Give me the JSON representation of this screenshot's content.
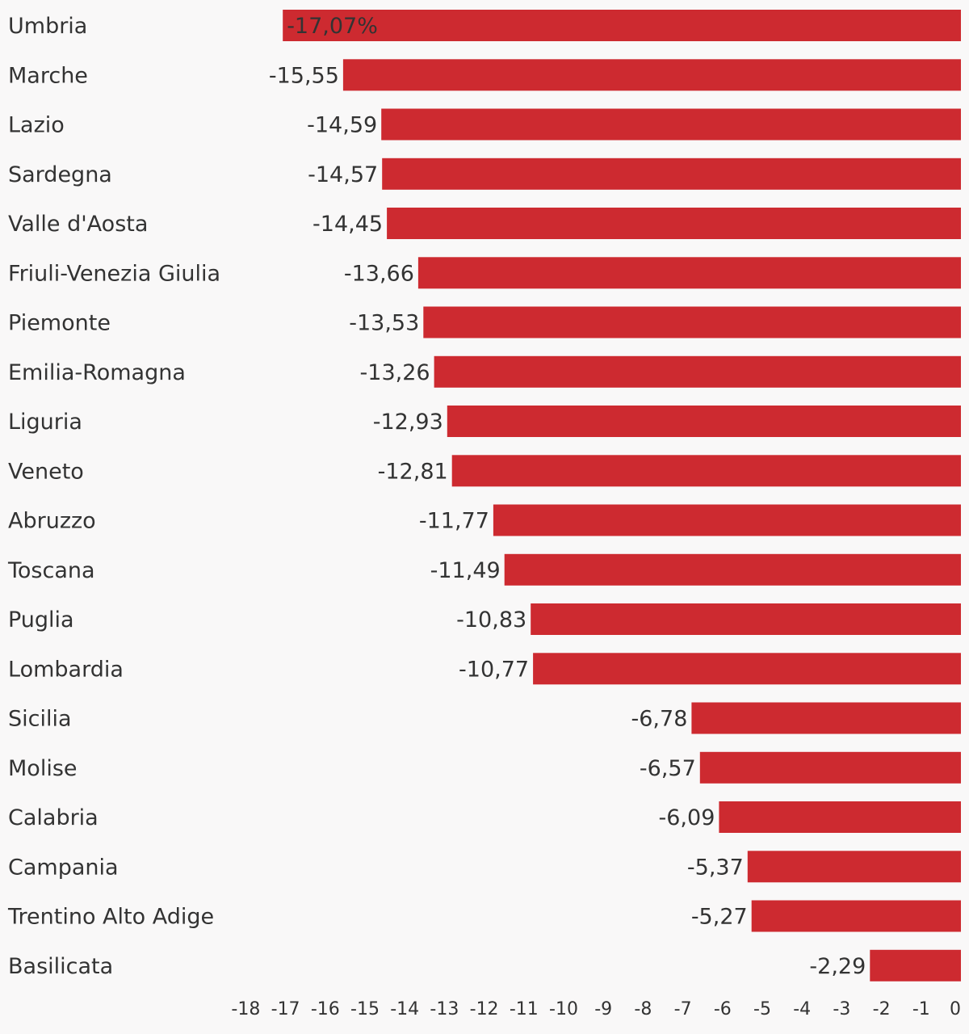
{
  "chart_data": {
    "type": "bar",
    "orientation": "horizontal",
    "categories": [
      "Umbria",
      "Marche",
      "Lazio",
      "Sardegna",
      "Valle d'Aosta",
      "Friuli-Venezia Giulia",
      "Piemonte",
      "Emilia-Romagna",
      "Liguria",
      "Veneto",
      "Abruzzo",
      "Toscana",
      "Puglia",
      "Lombardia",
      "Sicilia",
      "Molise",
      "Calabria",
      "Campania",
      "Trentino Alto Adige",
      "Basilicata"
    ],
    "values": [
      -17.07,
      -15.55,
      -14.59,
      -14.57,
      -14.45,
      -13.66,
      -13.53,
      -13.26,
      -12.93,
      -12.81,
      -11.77,
      -11.49,
      -10.83,
      -10.77,
      -6.78,
      -6.57,
      -6.09,
      -5.37,
      -5.27,
      -2.29
    ],
    "value_labels": [
      "-17,07%",
      "-15,55",
      "-14,59",
      "-14,57",
      "-14,45",
      "-13,66",
      "-13,53",
      "-13,26",
      "-12,93",
      "-12,81",
      "-11,77",
      "-11,49",
      "-10,83",
      "-10,77",
      "-6,78",
      "-6,57",
      "-6,09",
      "-5,37",
      "-5,27",
      "-2,29"
    ],
    "xlim": [
      -18,
      0
    ],
    "xticks": [
      "-18",
      "-17",
      "-16",
      "-15",
      "-14",
      "-13",
      "-12",
      "-11",
      "-10",
      "-9",
      "-8",
      "-7",
      "-6",
      "-5",
      "-4",
      "-3",
      "-2",
      "-1",
      "0"
    ],
    "title": "",
    "xlabel": "",
    "ylabel": "",
    "grid": false,
    "colors": {
      "bar": "#cd2a30",
      "background": "#f9f8f8",
      "text": "#333333"
    }
  }
}
